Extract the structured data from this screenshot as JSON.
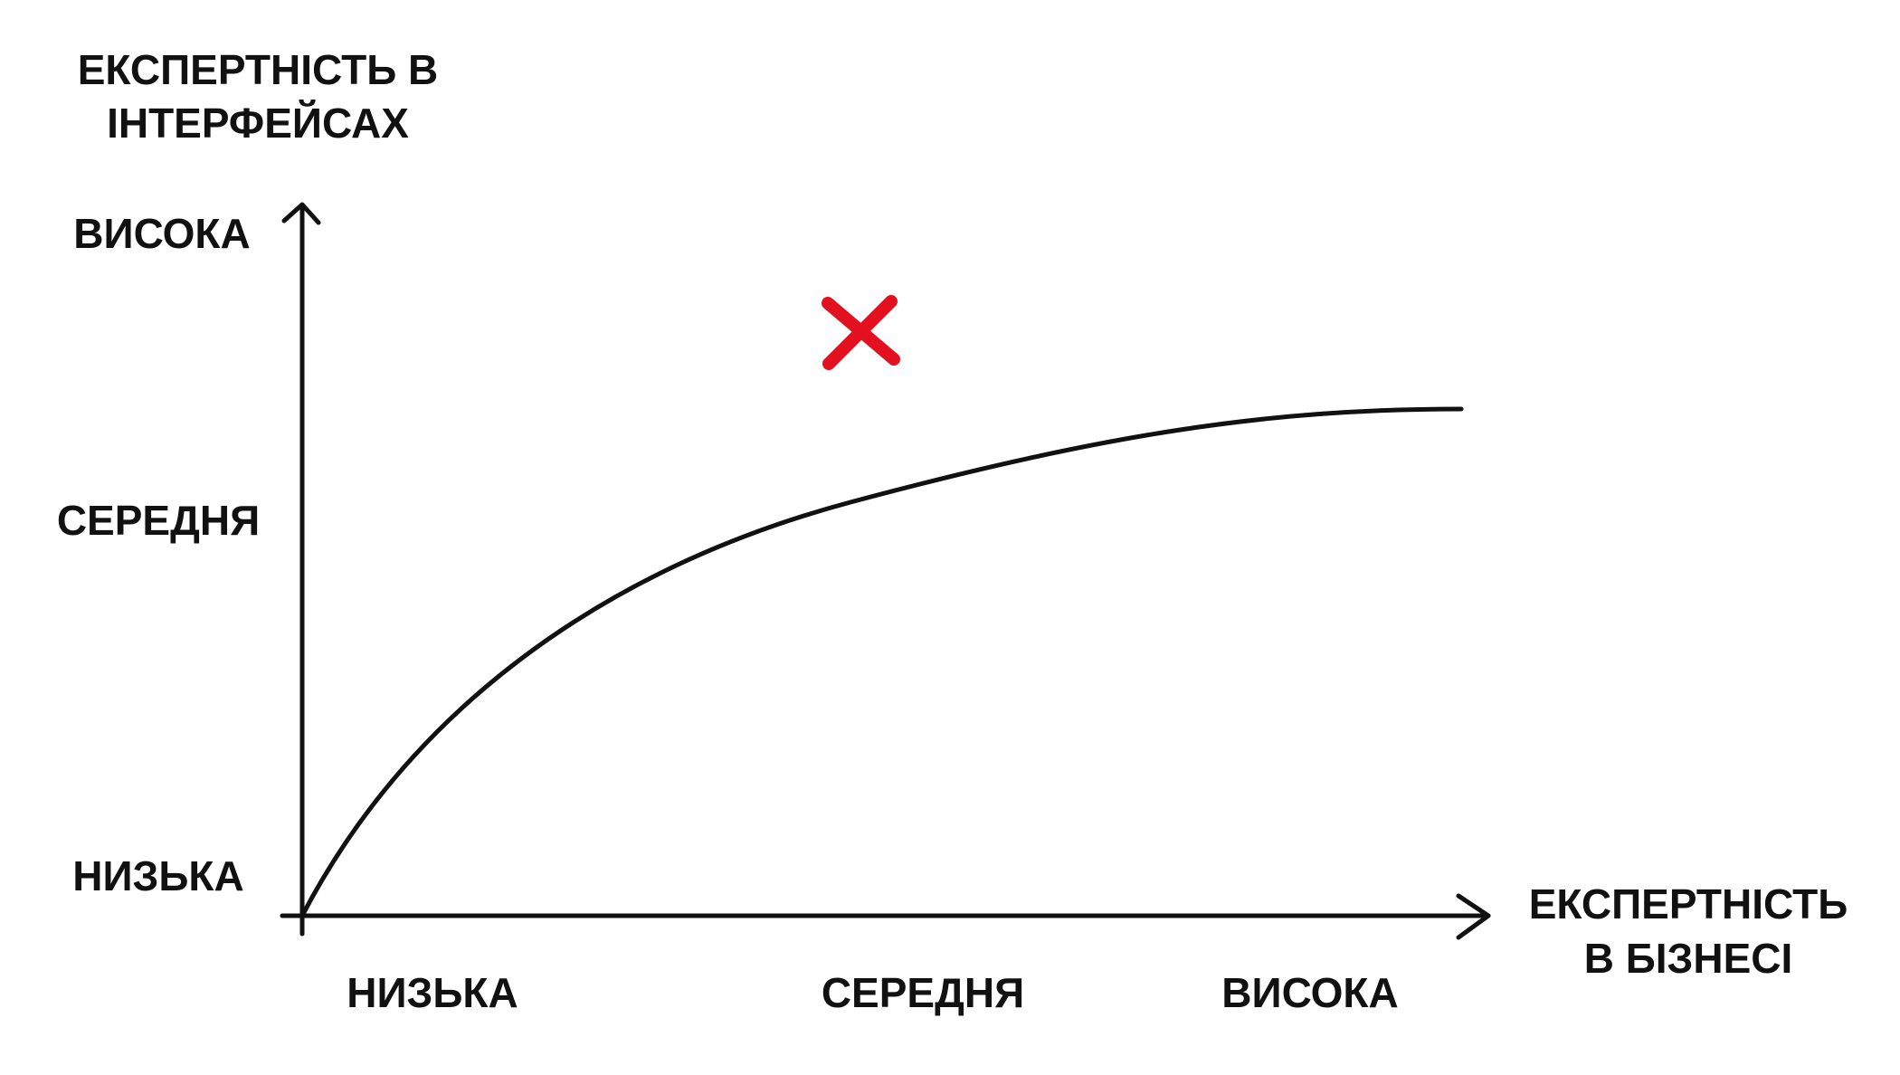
{
  "y_axis": {
    "title": [
      "ЕКСПЕРТНІСТЬ В",
      "ІНТЕРФЕЙСАХ"
    ],
    "labels": [
      "ВИСОКА",
      "СЕРЕДНЯ",
      "НИЗЬКА"
    ]
  },
  "x_axis": {
    "title": [
      "ЕКСПЕРТНІСТЬ",
      "В БІЗНЕСІ"
    ],
    "labels": [
      "НИЗЬКА",
      "СЕРЕДНЯ",
      "ВИСОКА"
    ]
  }
}
